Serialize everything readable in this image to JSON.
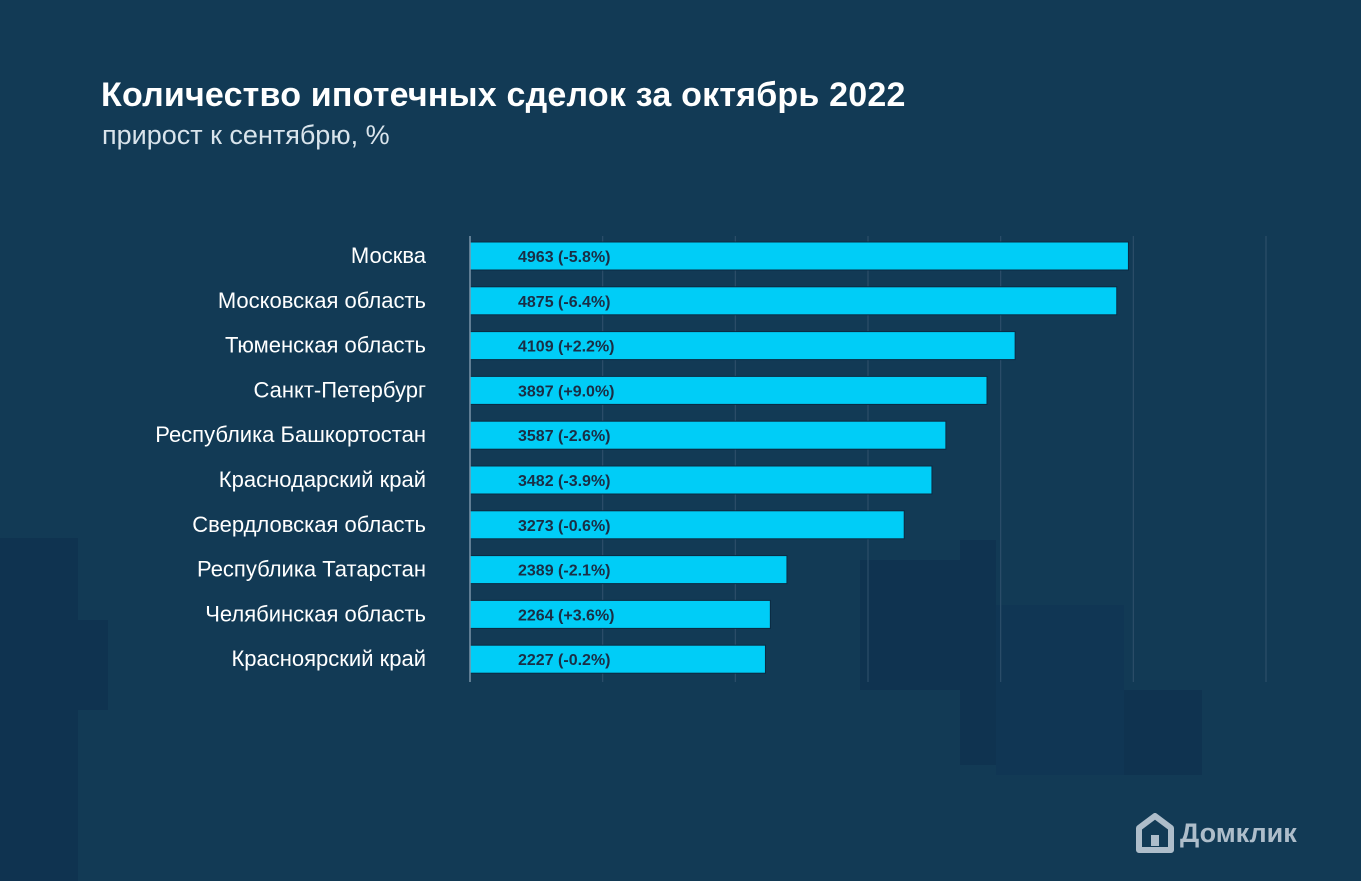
{
  "title": "Количество ипотечных сделок за октябрь 2022",
  "subtitle": "прирост к сентябрю, %",
  "brand": {
    "name": "Домклик",
    "icon": "house-logo-icon"
  },
  "colors": {
    "background": "#123a55",
    "bar": "#00cdf7",
    "grid": "#2c4e69",
    "bar_text": "#1a2e45"
  },
  "chart_data": {
    "type": "bar",
    "orientation": "horizontal",
    "categories": [
      "Москва",
      "Московская область",
      "Тюменская область",
      "Санкт-Петербург",
      "Республика Башкортостан",
      "Краснодарский край",
      "Свердловская область",
      "Республика Татарстан",
      "Челябинская область",
      "Красноярский край"
    ],
    "values": [
      4963,
      4875,
      4109,
      3897,
      3587,
      3482,
      3273,
      2389,
      2264,
      2227
    ],
    "labels": [
      "4963 (-5.8%)",
      "4875 (-6.4%)",
      "4109 (+2.2%)",
      "3897 (+9.0%)",
      "3587 (-2.6%)",
      "3482 (-3.9%)",
      "3273 (-0.6%)",
      "2389 (-2.1%)",
      "2264 (+3.6%)",
      "2227 (-0.2%)"
    ],
    "xlim": [
      0,
      6000
    ],
    "grid": true,
    "legend": "none"
  }
}
